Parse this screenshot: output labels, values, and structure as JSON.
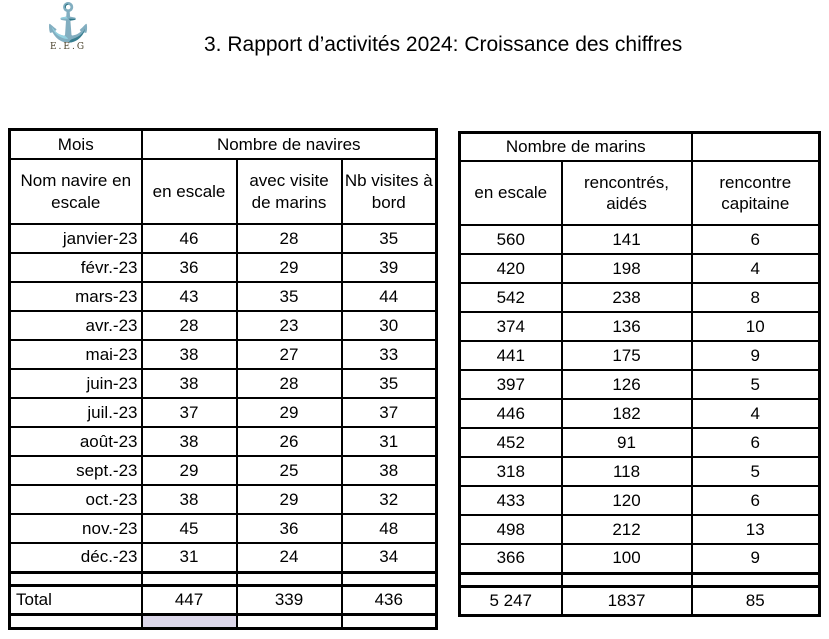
{
  "slide": {
    "title": "3. Rapport d’activités 2024: Croissance des chiffres",
    "logo_caption": "E.E.G"
  },
  "navires": {
    "corner_header": "Mois",
    "group_header": "Nombre de navires",
    "col_headers": [
      "Nom navire en escale",
      "en escale",
      "avec visite de marins",
      "Nb visites à bord"
    ],
    "rows": [
      [
        "janvier-23",
        "46",
        "28",
        "35"
      ],
      [
        "févr.-23",
        "36",
        "29",
        "39"
      ],
      [
        "mars-23",
        "43",
        "35",
        "44"
      ],
      [
        "avr.-23",
        "28",
        "23",
        "30"
      ],
      [
        "mai-23",
        "38",
        "27",
        "33"
      ],
      [
        "juin-23",
        "38",
        "28",
        "35"
      ],
      [
        "juil.-23",
        "37",
        "29",
        "37"
      ],
      [
        "août-23",
        "38",
        "26",
        "31"
      ],
      [
        "sept.-23",
        "29",
        "25",
        "38"
      ],
      [
        "oct.-23",
        "38",
        "29",
        "32"
      ],
      [
        "nov.-23",
        "45",
        "36",
        "48"
      ],
      [
        "déc.-23",
        "31",
        "24",
        "34"
      ]
    ],
    "total_label": "Total",
    "total": [
      "447",
      "339",
      "436"
    ]
  },
  "marins": {
    "group_header": "Nombre de marins",
    "corner_header": "",
    "col_headers": [
      "en escale",
      "rencontrés, aidés",
      "rencontre capitaine"
    ],
    "rows": [
      [
        "560",
        "141",
        "6"
      ],
      [
        "420",
        "198",
        "4"
      ],
      [
        "542",
        "238",
        "8"
      ],
      [
        "374",
        "136",
        "10"
      ],
      [
        "441",
        "175",
        "9"
      ],
      [
        "397",
        "126",
        "5"
      ],
      [
        "446",
        "182",
        "4"
      ],
      [
        "452",
        "91",
        "6"
      ],
      [
        "318",
        "118",
        "5"
      ],
      [
        "433",
        "120",
        "6"
      ],
      [
        "498",
        "212",
        "13"
      ],
      [
        "366",
        "100",
        "9"
      ]
    ],
    "total": [
      "5 247",
      "1837",
      "85"
    ]
  },
  "colors": {
    "highlight_lavender": "#dcd7ea",
    "logo_olive": "#877733",
    "border": "#000000"
  }
}
